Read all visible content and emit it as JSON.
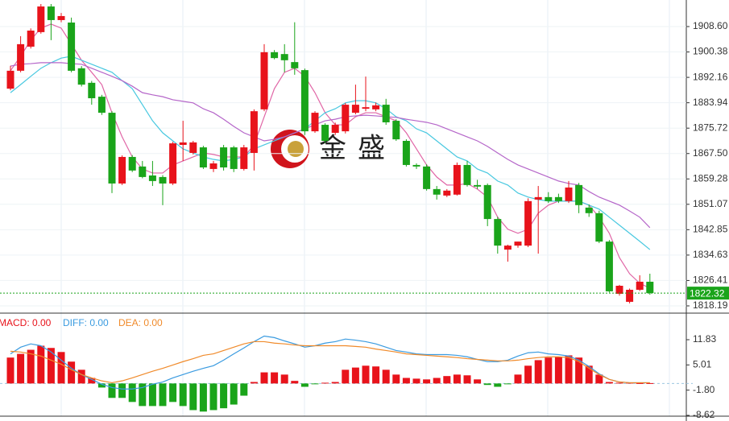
{
  "chart_data": [
    {
      "type": "candlestick",
      "open": [
        1888.5,
        1894.3,
        1902.1,
        1906.8,
        1915.1,
        1910.7,
        1909.9,
        1895.1,
        1890.4,
        1885.9,
        1880.7,
        1857.8,
        1866.4,
        1863.3,
        1860.4,
        1859.9,
        1857.8,
        1870.3,
        1867.7,
        1869.5,
        1862.5,
        1869.5,
        1869.5,
        1862.5,
        1867.7,
        1881.8,
        1900.3,
        1899.7,
        1897.1,
        1894.5,
        1874.7,
        1876.8,
        1874.2,
        1874.7,
        1880.7,
        1882.0,
        1881.8,
        1883.3,
        1878.1,
        1871.6,
        1863.8,
        1863.3,
        1856.0,
        1853.9,
        1854.2,
        1863.8,
        1857.3,
        1857.3,
        1846.3,
        1836.4,
        1837.7,
        1837.7,
        1852.6,
        1853.4,
        1853.4,
        1852.1,
        1857.3,
        1850.0,
        1848.2,
        1839.0,
        1822.1,
        1819.5,
        1823.4,
        1826.0
      ],
      "high": [
        1895.9,
        1905.5,
        1908.0,
        1915.9,
        1915.9,
        1913.0,
        1911.5,
        1895.8,
        1891.0,
        1886.5,
        1881.2,
        1866.9,
        1867.0,
        1865.1,
        1865.1,
        1860.5,
        1871.3,
        1878.1,
        1871.6,
        1870.0,
        1865.1,
        1870.3,
        1870.0,
        1870.3,
        1881.8,
        1902.9,
        1901.0,
        1902.9,
        1910.0,
        1895.0,
        1881.2,
        1877.3,
        1877.5,
        1883.9,
        1889.8,
        1892.4,
        1884.0,
        1885.2,
        1878.6,
        1872.1,
        1864.3,
        1864.0,
        1857.0,
        1856.0,
        1864.6,
        1865.1,
        1859.0,
        1857.8,
        1847.0,
        1838.0,
        1839.0,
        1853.0,
        1857.0,
        1855.0,
        1854.5,
        1858.6,
        1858.0,
        1851.0,
        1849.0,
        1839.5,
        1825.0,
        1823.8,
        1828.1,
        1828.6
      ],
      "low": [
        1888.0,
        1893.8,
        1901.5,
        1906.3,
        1904.2,
        1910.0,
        1893.8,
        1889.2,
        1883.3,
        1880.0,
        1854.7,
        1857.3,
        1861.5,
        1859.5,
        1857.0,
        1850.8,
        1857.3,
        1865.1,
        1867.2,
        1862.5,
        1861.5,
        1862.0,
        1861.5,
        1862.0,
        1862.0,
        1881.2,
        1898.0,
        1893.8,
        1893.0,
        1873.5,
        1874.2,
        1871.0,
        1873.5,
        1874.0,
        1880.2,
        1881.2,
        1881.2,
        1876.8,
        1871.6,
        1863.3,
        1862.5,
        1855.5,
        1852.6,
        1853.4,
        1853.9,
        1856.8,
        1856.0,
        1844.0,
        1835.1,
        1832.5,
        1837.0,
        1837.2,
        1835.1,
        1851.5,
        1851.5,
        1851.5,
        1848.2,
        1847.0,
        1838.5,
        1822.5,
        1821.5,
        1819.0,
        1823.0,
        1821.8
      ],
      "close": [
        1894.3,
        1902.9,
        1907.3,
        1915.1,
        1910.7,
        1912.0,
        1894.3,
        1889.8,
        1885.4,
        1880.7,
        1857.8,
        1866.4,
        1862.0,
        1859.9,
        1858.6,
        1857.8,
        1870.8,
        1871.1,
        1871.1,
        1863.0,
        1864.3,
        1863.0,
        1862.5,
        1869.5,
        1881.2,
        1900.3,
        1898.4,
        1897.7,
        1895.1,
        1874.7,
        1880.7,
        1871.6,
        1876.8,
        1883.3,
        1883.3,
        1882.5,
        1883.1,
        1877.6,
        1872.1,
        1863.8,
        1863.3,
        1856.0,
        1854.2,
        1855.5,
        1863.8,
        1857.3,
        1856.8,
        1846.3,
        1837.7,
        1837.7,
        1839.0,
        1852.1,
        1853.4,
        1852.1,
        1852.1,
        1856.5,
        1850.8,
        1848.2,
        1839.0,
        1822.9,
        1824.7,
        1823.4,
        1826.0,
        1822.32
      ],
      "up_color": "#e8131b",
      "down_color": "#1aa41a",
      "lines": [
        {
          "color": "#e066a6",
          "values": [
            1894.3,
            1899.0,
            1904.2,
            1908.1,
            1909.4,
            1908.1,
            1902.9,
            1897.7,
            1893.8,
            1889.8,
            1880.7,
            1872.9,
            1866.4,
            1862.5,
            1861.2,
            1861.2,
            1863.8,
            1865.1,
            1866.4,
            1867.7,
            1867.2,
            1866.4,
            1866.4,
            1866.4,
            1870.3,
            1879.4,
            1888.5,
            1893.8,
            1895.1,
            1892.5,
            1887.2,
            1880.7,
            1876.8,
            1876.8,
            1879.4,
            1880.7,
            1880.7,
            1879.4,
            1878.1,
            1874.2,
            1869.0,
            1863.8,
            1859.9,
            1857.3,
            1857.3,
            1857.8,
            1856.0,
            1853.4,
            1846.9,
            1843.0,
            1841.7,
            1843.0,
            1848.2,
            1850.8,
            1852.1,
            1852.1,
            1852.1,
            1850.8,
            1846.9,
            1841.7,
            1833.8,
            1828.6,
            1825.5,
            1823.9
          ]
        },
        {
          "color": "#48c8e0",
          "values": [
            1887.2,
            1889.8,
            1892.5,
            1895.1,
            1896.9,
            1898.4,
            1899.0,
            1897.7,
            1896.4,
            1895.1,
            1893.8,
            1891.1,
            1888.5,
            1883.3,
            1878.1,
            1874.2,
            1871.6,
            1869.0,
            1867.7,
            1866.4,
            1865.6,
            1865.1,
            1865.6,
            1866.4,
            1869.0,
            1870.3,
            1871.6,
            1872.9,
            1874.2,
            1875.5,
            1878.1,
            1880.7,
            1882.0,
            1883.9,
            1884.6,
            1884.6,
            1883.9,
            1882.0,
            1879.4,
            1878.1,
            1875.5,
            1874.2,
            1871.6,
            1869.0,
            1866.4,
            1865.1,
            1862.5,
            1861.2,
            1858.6,
            1857.3,
            1854.7,
            1853.4,
            1852.6,
            1852.1,
            1852.1,
            1852.1,
            1852.1,
            1850.8,
            1849.5,
            1846.9,
            1844.3,
            1841.7,
            1839.1,
            1836.4
          ]
        },
        {
          "color": "#b566c9",
          "values": [
            1895.8,
            1896.4,
            1896.6,
            1896.9,
            1896.9,
            1896.9,
            1896.6,
            1896.4,
            1895.1,
            1893.8,
            1892.5,
            1891.1,
            1889.3,
            1887.2,
            1886.5,
            1885.9,
            1884.9,
            1884.4,
            1883.9,
            1882.0,
            1880.7,
            1878.6,
            1876.3,
            1874.2,
            1872.9,
            1871.6,
            1872.1,
            1872.9,
            1874.2,
            1875.5,
            1876.8,
            1878.1,
            1878.6,
            1879.4,
            1879.7,
            1879.9,
            1879.7,
            1879.4,
            1879.2,
            1878.6,
            1878.1,
            1877.6,
            1876.8,
            1875.5,
            1874.2,
            1872.9,
            1871.6,
            1869.8,
            1867.7,
            1865.6,
            1863.8,
            1862.5,
            1861.2,
            1859.9,
            1858.6,
            1857.8,
            1857.3,
            1855.2,
            1853.4,
            1852.1,
            1850.8,
            1848.9,
            1846.9,
            1843.5
          ]
        }
      ],
      "ylim": [
        1816.1,
        1917.2
      ],
      "yticks": [
        {
          "value": 1908.6,
          "label": "1908.60"
        },
        1900.38,
        1892.16,
        1883.94,
        1875.72,
        {
          "value": 1867.5,
          "label": "1867.50"
        },
        1859.28,
        1851.07,
        1842.85,
        1834.63,
        1826.41,
        1818.19
      ],
      "last_price": 1822.32,
      "last_price_color": "#1aa41a",
      "watermark": "金盛",
      "grid": true
    },
    {
      "type": "macd",
      "legend": [
        {
          "text": "MACD: 0.00",
          "color": "#e8131b"
        },
        {
          "text": "DIFF: 0.00",
          "color": "#3a9be0"
        },
        {
          "text": "DEA: 0.00",
          "color": "#f08a2a"
        }
      ],
      "histogram": [
        7.0,
        8.0,
        9.1,
        10.2,
        9.6,
        8.5,
        5.9,
        3.7,
        1.5,
        -1.1,
        -3.9,
        -3.9,
        -5.0,
        -6.1,
        -6.1,
        -6.1,
        -5.0,
        -6.1,
        -7.2,
        -7.6,
        -7.2,
        -6.7,
        -5.7,
        -3.3,
        0.4,
        3.0,
        3.0,
        2.4,
        0.7,
        -0.9,
        -0.2,
        0.2,
        0.4,
        3.7,
        4.3,
        4.8,
        4.6,
        3.7,
        2.4,
        1.5,
        1.3,
        1.1,
        1.5,
        2.0,
        2.4,
        2.2,
        1.1,
        -0.4,
        -0.9,
        -0.2,
        2.4,
        4.8,
        6.3,
        7.0,
        7.2,
        7.6,
        7.0,
        4.8,
        2.4,
        0.4,
        0.2,
        0.2,
        0.1,
        0.1
      ],
      "diff": [
        8.0,
        9.8,
        10.7,
        10.2,
        8.5,
        6.3,
        4.1,
        2.4,
        1.1,
        -0.2,
        -1.1,
        -1.5,
        -1.5,
        -1.1,
        -0.2,
        0.4,
        1.5,
        2.4,
        3.3,
        4.1,
        4.8,
        6.3,
        8.0,
        9.6,
        11.3,
        12.8,
        12.4,
        11.5,
        10.7,
        9.8,
        10.2,
        10.9,
        11.3,
        12.0,
        11.7,
        11.3,
        10.7,
        9.8,
        8.9,
        8.5,
        8.0,
        7.8,
        7.8,
        7.8,
        7.6,
        7.2,
        6.5,
        5.9,
        5.9,
        6.3,
        7.4,
        8.3,
        8.5,
        8.0,
        7.8,
        7.4,
        6.3,
        4.6,
        2.6,
        1.1,
        0.4,
        0.2,
        0.2,
        0.2
      ],
      "dea": [
        8.7,
        8.5,
        8.0,
        7.4,
        6.3,
        5.2,
        3.7,
        2.4,
        1.5,
        0.7,
        0.2,
        0.7,
        1.5,
        2.4,
        3.3,
        4.1,
        5.0,
        5.9,
        6.7,
        7.6,
        8.0,
        8.9,
        9.8,
        10.7,
        11.3,
        11.3,
        10.9,
        10.7,
        10.4,
        10.2,
        10.2,
        10.2,
        10.2,
        10.2,
        10.0,
        9.8,
        9.3,
        8.9,
        8.5,
        8.0,
        7.8,
        7.6,
        7.4,
        7.2,
        7.0,
        6.7,
        6.5,
        6.3,
        6.1,
        6.1,
        6.3,
        6.7,
        7.0,
        7.2,
        7.2,
        7.0,
        5.9,
        4.1,
        2.4,
        1.1,
        0.4,
        0.2,
        0.2,
        0.2
      ],
      "up_color": "#e8131b",
      "down_color": "#1aa41a",
      "ylim": [
        -8.84,
        18.79
      ],
      "yticks": [
        11.83,
        5.01,
        {
          "value": -1.8,
          "label": "-1.80"
        },
        -8.62
      ]
    }
  ]
}
